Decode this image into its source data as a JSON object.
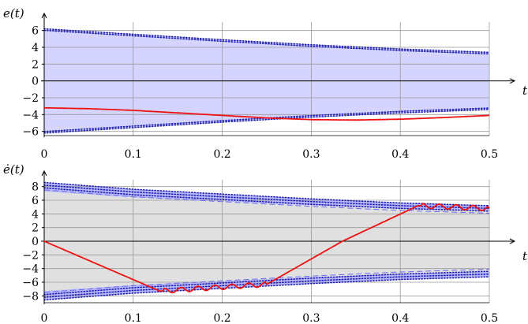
{
  "chart_data": [
    {
      "type": "line",
      "ylabel": "e(t)",
      "xlabel": "t",
      "xlim": [
        0,
        0.5
      ],
      "ylim": [
        -6.5,
        7
      ],
      "xticks": [
        0,
        0.1,
        0.2,
        0.3,
        0.4,
        0.5
      ],
      "xtick_labels": [
        "0",
        "0.1",
        "0.2",
        "0.3",
        "0.4",
        "0.5"
      ],
      "yticks": [
        -6,
        -4,
        -2,
        0,
        2,
        4,
        6
      ],
      "ytick_labels": [
        "−6",
        "−4",
        "−2",
        "0",
        "2",
        "4",
        "6"
      ],
      "grid": true,
      "band": {
        "x": [
          0,
          0.1,
          0.2,
          0.3,
          0.4,
          0.5
        ],
        "upper": [
          6.2,
          5.55,
          4.9,
          4.3,
          3.8,
          3.4
        ],
        "lower": [
          -6.2,
          -5.55,
          -4.9,
          -4.3,
          -3.8,
          -3.4
        ],
        "fill": "#d4d4ff",
        "edge_color": "#1f1fb0"
      },
      "series": [
        {
          "color": "#ee1111",
          "x": [
            0,
            0.05,
            0.1,
            0.15,
            0.2,
            0.25,
            0.3,
            0.35,
            0.4,
            0.45,
            0.5
          ],
          "y": [
            -3.2,
            -3.3,
            -3.5,
            -3.8,
            -4.1,
            -4.4,
            -4.6,
            -4.65,
            -4.55,
            -4.35,
            -4.1
          ]
        }
      ]
    },
    {
      "type": "line",
      "ylabel": "ė(t)",
      "xlabel": "t",
      "xlim": [
        0,
        0.5
      ],
      "ylim": [
        -9,
        9
      ],
      "xticks": [
        0,
        0.1,
        0.2,
        0.3,
        0.4,
        0.5
      ],
      "xtick_labels": [
        "0",
        "0.1",
        "0.2",
        "0.3",
        "0.4",
        "0.5"
      ],
      "yticks": [
        -8,
        -6,
        -4,
        -2,
        0,
        2,
        4,
        6,
        8
      ],
      "ytick_labels": [
        "−8",
        "−6",
        "−4",
        "−2",
        "0",
        "2",
        "4",
        "6",
        "8"
      ],
      "grid": true,
      "band": {
        "x": [
          0,
          0.1,
          0.2,
          0.3,
          0.4,
          0.5
        ],
        "upper": [
          8.6,
          7.6,
          6.9,
          6.2,
          5.6,
          5.2
        ],
        "lower": [
          -8.6,
          -7.6,
          -6.9,
          -6.2,
          -5.6,
          -5.2
        ],
        "fill": "#e0e0e0",
        "edge_color": "#1f1fb0",
        "envelope_fill": "#b3b3ff"
      },
      "series": [
        {
          "color": "#ee1111",
          "x": [
            0,
            0.13,
            0.25,
            0.335,
            0.42,
            0.5
          ],
          "y": [
            0,
            -7.3,
            -6.3,
            0,
            5.2,
            4.8
          ],
          "chatter_segments": [
            [
              0.13,
              0.25
            ],
            [
              0.42,
              0.5
            ]
          ]
        }
      ]
    }
  ]
}
